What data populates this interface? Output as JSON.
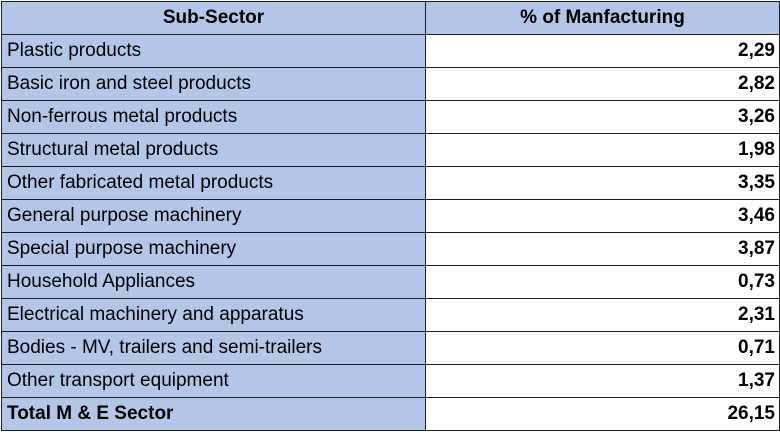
{
  "table": {
    "headers": {
      "sub_sector": "Sub-Sector",
      "percent": "% of Manfacturing"
    },
    "rows": [
      {
        "sub_sector": "Plastic products",
        "percent": "2,29"
      },
      {
        "sub_sector": "Basic iron and steel products",
        "percent": "2,82"
      },
      {
        "sub_sector": "Non-ferrous metal products",
        "percent": "3,26"
      },
      {
        "sub_sector": "Structural metal products",
        "percent": "1,98"
      },
      {
        "sub_sector": "Other fabricated metal products",
        "percent": "3,35"
      },
      {
        "sub_sector": "General purpose machinery",
        "percent": "3,46"
      },
      {
        "sub_sector": "Special purpose machinery",
        "percent": "3,87"
      },
      {
        "sub_sector": "Household Appliances",
        "percent": "0,73"
      },
      {
        "sub_sector": "Electrical machinery and apparatus",
        "percent": "2,31"
      },
      {
        "sub_sector": "Bodies - MV, trailers and semi-trailers",
        "percent": "0,71"
      },
      {
        "sub_sector": "Other transport equipment",
        "percent": "1,37"
      }
    ],
    "total": {
      "sub_sector": "Total M & E Sector",
      "percent": "26,15"
    }
  },
  "colors": {
    "label_fill": "#b4c6e7",
    "value_fill": "#ffffff",
    "border": "#1f1f1f"
  }
}
